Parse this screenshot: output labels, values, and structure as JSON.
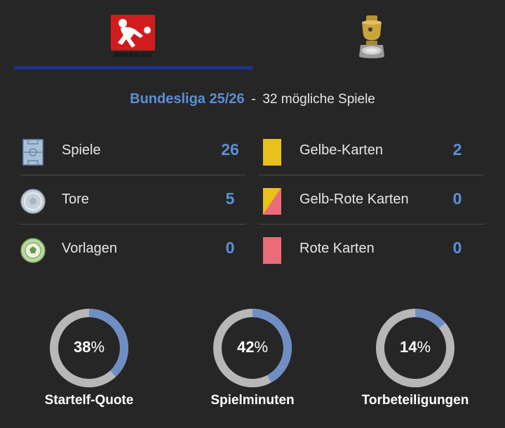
{
  "tabs": [
    {
      "label": "BUNDESLIGA",
      "icon": "bundesliga-logo-icon",
      "active": true
    },
    {
      "label": "",
      "icon": "dfb-pokal-trophy-icon",
      "active": false
    }
  ],
  "competition": {
    "name": "Bundesliga 25/26",
    "separator": "-",
    "subtitle": "32 mögliche Spiele"
  },
  "stats_left": [
    {
      "label": "Spiele",
      "value": "26",
      "icon": "pitch-icon"
    },
    {
      "label": "Tore",
      "value": "5",
      "icon": "ball-icon"
    },
    {
      "label": "Vorlagen",
      "value": "0",
      "icon": "assist-ball-icon"
    }
  ],
  "stats_right": [
    {
      "label": "Gelbe-Karten",
      "value": "2",
      "icon": "yellow-card-icon"
    },
    {
      "label": "Gelb-Rote Karten",
      "value": "0",
      "icon": "yellow-red-card-icon"
    },
    {
      "label": "Rote Karten",
      "value": "0",
      "icon": "red-card-icon"
    }
  ],
  "donuts": [
    {
      "value": "38",
      "suffix": "%",
      "fraction": 0.38,
      "label": "Startelf-Quote"
    },
    {
      "value": "42",
      "suffix": "%",
      "fraction": 0.42,
      "label": "Spielminuten"
    },
    {
      "value": "14",
      "suffix": "%",
      "fraction": 0.14,
      "label": "Torbeteiligungen"
    }
  ],
  "colors": {
    "accent": "#5b8fd6",
    "tab_underline": "#1e2f8e",
    "donut_track": "#b7b7b7",
    "donut_fill": "#6f8fc4",
    "yellow_card": "#e8c21a",
    "red_card": "#ec6b78"
  }
}
